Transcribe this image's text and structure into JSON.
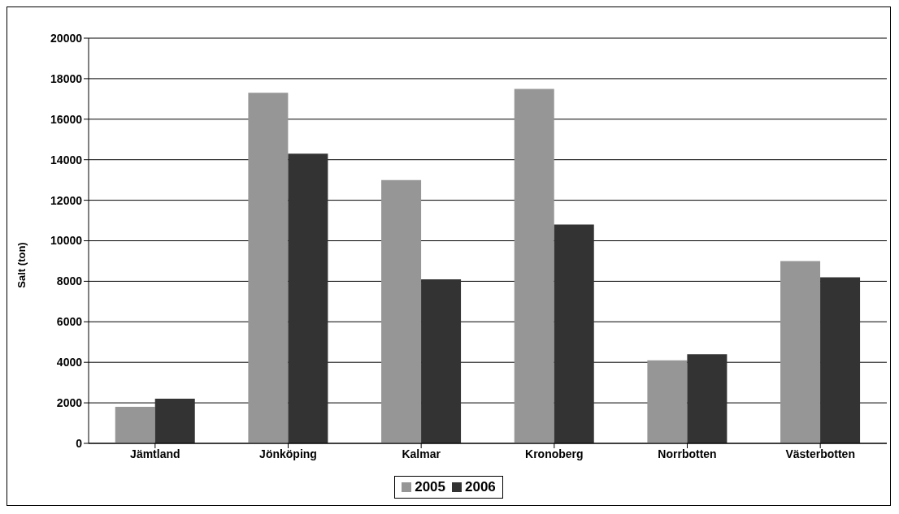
{
  "chart_data": {
    "type": "bar",
    "ylabel": "Salt (ton)",
    "categories": [
      "Jämtland",
      "Jönköping",
      "Kalmar",
      "Kronoberg",
      "Norrbotten",
      "Västerbotten"
    ],
    "series": [
      {
        "name": "2005",
        "color": "#969696",
        "values": [
          1800,
          17300,
          13000,
          17500,
          4100,
          9000
        ]
      },
      {
        "name": "2006",
        "color": "#333333",
        "values": [
          2200,
          14300,
          8100,
          10800,
          4400,
          8200
        ]
      }
    ],
    "ylim": [
      0,
      20000
    ],
    "yticks": [
      0,
      2000,
      4000,
      6000,
      8000,
      10000,
      12000,
      14000,
      16000,
      18000,
      20000
    ],
    "grid": "y",
    "legend": "bottom"
  }
}
